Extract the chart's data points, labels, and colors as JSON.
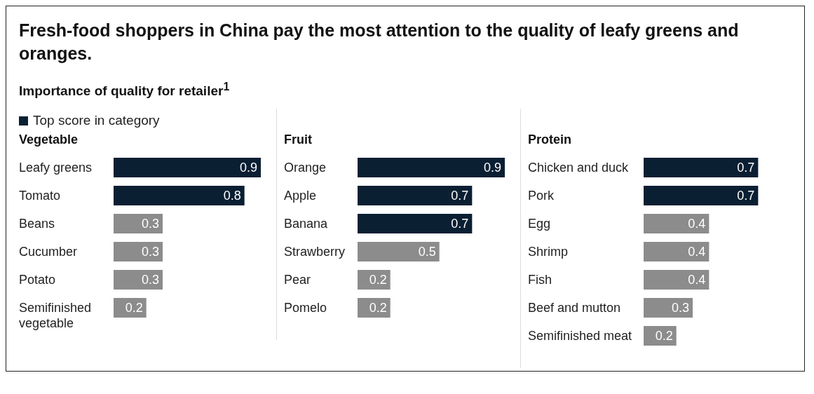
{
  "chart_data": [
    {
      "type": "other",
      "title": "Fresh-food shoppers in China pay the most attention to the quality of leafy greens and oranges.",
      "subtitle": "Importance of quality for retailer$^{1}$"
    },
    {
      "type": "bar",
      "orientation": "horizontal",
      "stacked": true,
      "data_labels": true,
      "legend": "top left",
      "title": "Vegetable",
      "categories": [
        "Leafy greens",
        "Tomato",
        "Beans",
        "Cucumber",
        "Potato",
        "Semifinished vegetable"
      ],
      "series": [
        {
          "name": "Top score in category",
          "color": "#0b1f33",
          "values": [
            0.9,
            0.8,
            null,
            null,
            null,
            null
          ]
        },
        {
          "color": "#8c8c8c",
          "values": [
            null,
            null,
            0.3,
            0.3,
            0.3,
            0.2
          ]
        }
      ]
    },
    {
      "type": "bar",
      "orientation": "horizontal",
      "stacked": true,
      "data_labels": true,
      "title": "Fruit",
      "categories": [
        "Orange",
        "Apple",
        "Banana",
        "Strawberry",
        "Pear",
        "Pomelo"
      ],
      "series": [
        {
          "color": "#0b1f33",
          "values": [
            0.9,
            0.7,
            0.7,
            null,
            null,
            null
          ]
        },
        {
          "color": "#8c8c8c",
          "values": [
            null,
            null,
            null,
            0.5,
            0.2,
            0.2
          ]
        }
      ]
    },
    {
      "type": "bar",
      "orientation": "horizontal",
      "stacked": true,
      "data_labels": true,
      "title": "Protein",
      "categories": [
        "Chicken and duck",
        "Pork",
        "Egg",
        "Shrimp",
        "Fish",
        "Beef and mutton",
        "Semifinished meat"
      ],
      "series": [
        {
          "color": "#0b1f33",
          "values": [
            0.7,
            0.7,
            null,
            null,
            null,
            null,
            null
          ]
        },
        {
          "color": "#8c8c8c",
          "values": [
            null,
            null,
            0.4,
            0.4,
            0.4,
            0.3,
            0.2
          ]
        }
      ]
    }
  ]
}
